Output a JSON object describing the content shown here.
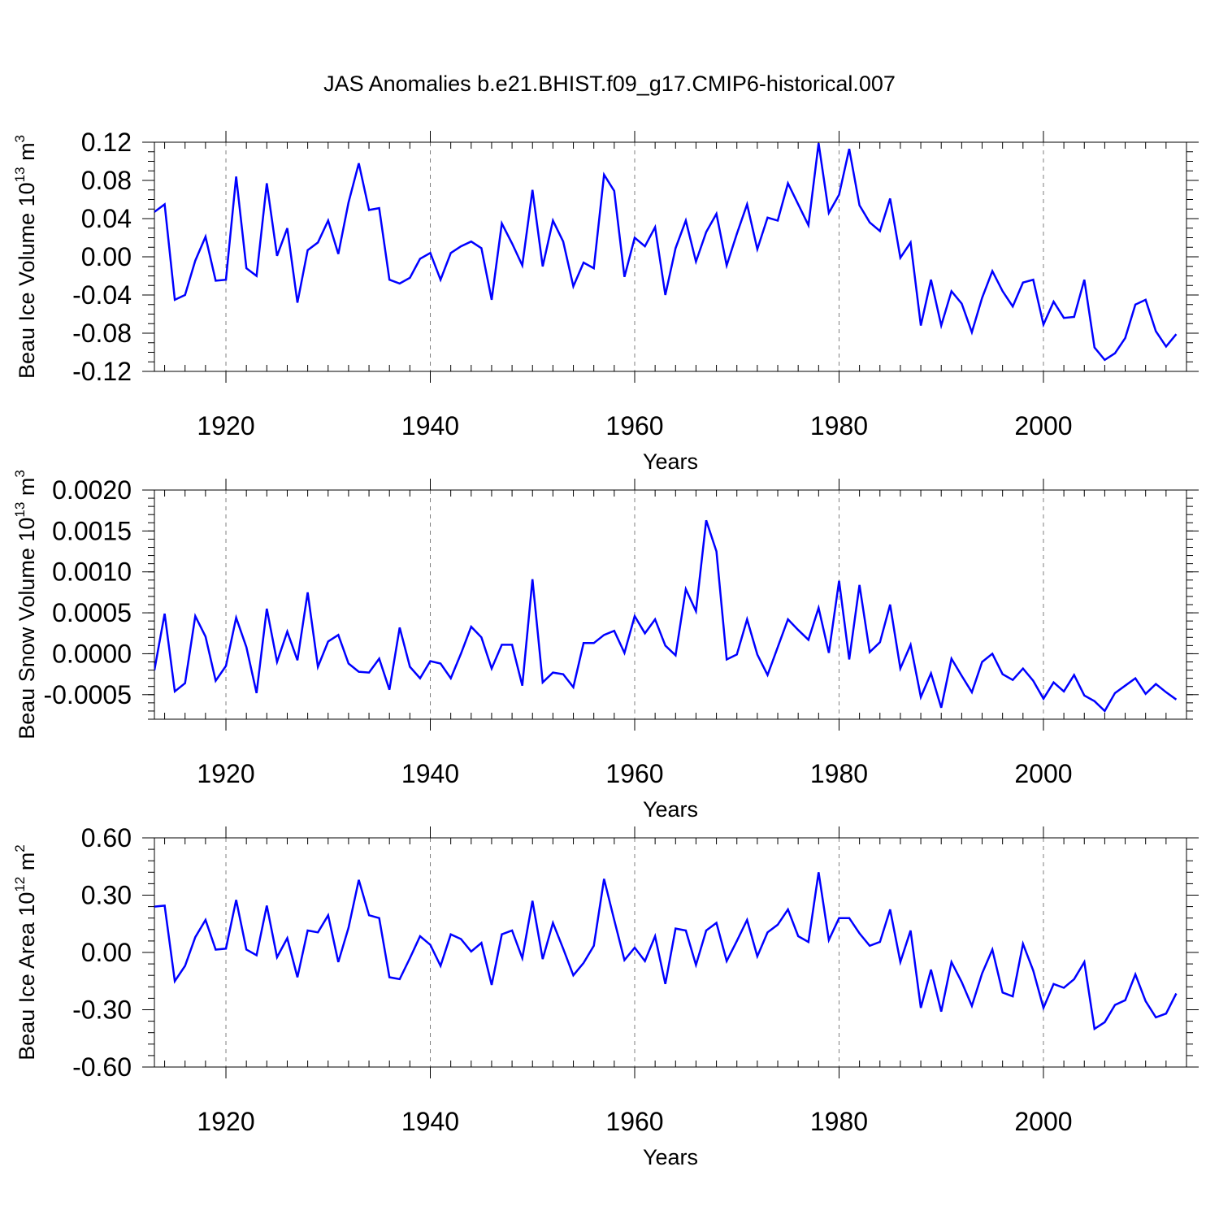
{
  "title": "JAS Anomalies b.e21.BHIST.f09_g17.CMIP6-historical.007",
  "colors": {
    "line": "#0000ff",
    "axis": "#000000",
    "grid": "#808080"
  },
  "chart_data": [
    {
      "type": "line",
      "xlabel": "Years",
      "ylabel_parts": [
        "Beau Ice Volume 10",
        "13",
        " m",
        "3"
      ],
      "xlim": [
        1913,
        2014
      ],
      "ylim": [
        -0.12,
        0.12
      ],
      "x_ticks": [
        1920,
        1940,
        1960,
        1980,
        2000
      ],
      "x_tick_labels": [
        "1920",
        "1940",
        "1960",
        "1980",
        "2000"
      ],
      "y_ticks": [
        -0.12,
        -0.08,
        -0.04,
        0.0,
        0.04,
        0.08,
        0.12
      ],
      "y_tick_labels": [
        "-0.12",
        "-0.08",
        "-0.04",
        "0.00",
        "0.04",
        "0.08",
        "0.12"
      ],
      "y_minor_step": 0.01,
      "grid_x": true,
      "x_start": 1913,
      "values": [
        0.047,
        0.055,
        -0.045,
        -0.04,
        -0.004,
        0.021,
        -0.025,
        -0.024,
        0.084,
        -0.012,
        -0.02,
        0.077,
        0.001,
        0.03,
        -0.048,
        0.007,
        0.015,
        0.038,
        0.003,
        0.057,
        0.098,
        0.049,
        0.051,
        -0.024,
        -0.028,
        -0.022,
        -0.002,
        0.004,
        -0.024,
        0.004,
        0.011,
        0.016,
        0.009,
        -0.045,
        0.035,
        0.014,
        -0.009,
        0.07,
        -0.01,
        0.038,
        0.016,
        -0.031,
        -0.006,
        -0.012,
        0.086,
        0.069,
        -0.021,
        0.02,
        0.011,
        0.031,
        -0.04,
        0.009,
        0.038,
        -0.005,
        0.026,
        0.045,
        -0.009,
        0.024,
        0.055,
        0.008,
        0.041,
        0.038,
        0.077,
        0.055,
        0.033,
        0.119,
        0.046,
        0.065,
        0.113,
        0.054,
        0.036,
        0.027,
        0.061,
        -0.001,
        0.015,
        -0.072,
        -0.024,
        -0.072,
        -0.036,
        -0.049,
        -0.079,
        -0.043,
        -0.015,
        -0.036,
        -0.052,
        -0.027,
        -0.024,
        -0.071,
        -0.047,
        -0.064,
        -0.063,
        -0.024,
        -0.095,
        -0.108,
        -0.101,
        -0.085,
        -0.05,
        -0.045,
        -0.078,
        -0.094,
        -0.081
      ]
    },
    {
      "type": "line",
      "xlabel": "Years",
      "ylabel_parts": [
        "Beau Snow Volume 10",
        "13",
        " m",
        "3"
      ],
      "xlim": [
        1913,
        2014
      ],
      "ylim": [
        -0.0008,
        0.002
      ],
      "x_ticks": [
        1920,
        1940,
        1960,
        1980,
        2000
      ],
      "x_tick_labels": [
        "1920",
        "1940",
        "1960",
        "1980",
        "2000"
      ],
      "y_ticks": [
        -0.0005,
        0.0,
        0.0005,
        0.001,
        0.0015,
        0.002
      ],
      "y_tick_labels": [
        "-0.0005",
        "0.0000",
        "0.0005",
        "0.0010",
        "0.0015",
        "0.0020"
      ],
      "y_minor_step": 0.0001,
      "grid_x": true,
      "x_start": 1913,
      "values": [
        -0.0002,
        0.00049,
        -0.00046,
        -0.00036,
        0.00046,
        0.00021,
        -0.00033,
        -0.00015,
        0.00044,
        8e-05,
        -0.00048,
        0.00055,
        -0.0001,
        0.00027,
        -8e-05,
        0.00075,
        -0.00016,
        0.00015,
        0.00023,
        -0.00012,
        -0.00022,
        -0.00023,
        -6e-05,
        -0.00044,
        0.00032,
        -0.00016,
        -0.0003,
        -9e-05,
        -0.00012,
        -0.0003,
        0.0,
        0.00033,
        0.0002,
        -0.00018,
        0.00011,
        0.00011,
        -0.00039,
        0.00091,
        -0.00035,
        -0.00023,
        -0.00025,
        -0.00041,
        0.00013,
        0.00013,
        0.00023,
        0.00028,
        1e-05,
        0.00046,
        0.00025,
        0.00042,
        0.0001,
        -2e-05,
        0.00079,
        0.00052,
        0.00163,
        0.00125,
        -7e-05,
        -1e-05,
        0.00042,
        -1e-05,
        -0.00026,
        8e-05,
        0.00042,
        0.00029,
        0.00017,
        0.00056,
        1e-05,
        0.00089,
        -7e-05,
        0.00084,
        2e-05,
        0.00014,
        0.0006,
        -0.00018,
        0.00011,
        -0.00053,
        -0.00024,
        -0.00066,
        -6e-05,
        -0.00027,
        -0.00047,
        -0.0001,
        0.0,
        -0.00025,
        -0.00032,
        -0.00018,
        -0.00033,
        -0.00055,
        -0.00035,
        -0.00046,
        -0.00026,
        -0.00051,
        -0.00058,
        -0.0007,
        -0.00048,
        -0.00039,
        -0.0003,
        -0.00049,
        -0.00037,
        -0.00047,
        -0.00056
      ]
    },
    {
      "type": "line",
      "xlabel": "Years",
      "ylabel_parts": [
        "Beau Ice Area 10",
        "12",
        " m",
        "2"
      ],
      "xlim": [
        1913,
        2014
      ],
      "ylim": [
        -0.6,
        0.6
      ],
      "x_ticks": [
        1920,
        1940,
        1960,
        1980,
        2000
      ],
      "x_tick_labels": [
        "1920",
        "1940",
        "1960",
        "1980",
        "2000"
      ],
      "y_ticks": [
        -0.6,
        -0.3,
        0.0,
        0.3,
        0.6
      ],
      "y_tick_labels": [
        "-0.60",
        "-0.30",
        "0.00",
        "0.30",
        "0.60"
      ],
      "y_minor_step": 0.06,
      "grid_x": true,
      "x_start": 1913,
      "values": [
        0.24,
        0.245,
        -0.15,
        -0.07,
        0.08,
        0.17,
        0.015,
        0.02,
        0.275,
        0.015,
        -0.015,
        0.245,
        -0.025,
        0.075,
        -0.13,
        0.115,
        0.105,
        0.195,
        -0.05,
        0.13,
        0.38,
        0.195,
        0.18,
        -0.13,
        -0.14,
        -0.03,
        0.085,
        0.04,
        -0.07,
        0.095,
        0.07,
        0.005,
        0.05,
        -0.17,
        0.095,
        0.115,
        -0.03,
        0.27,
        -0.035,
        0.155,
        0.02,
        -0.12,
        -0.055,
        0.035,
        0.385,
        0.17,
        -0.04,
        0.025,
        -0.045,
        0.085,
        -0.165,
        0.125,
        0.115,
        -0.065,
        0.115,
        0.155,
        -0.045,
        0.06,
        0.17,
        -0.02,
        0.105,
        0.145,
        0.225,
        0.085,
        0.055,
        0.42,
        0.065,
        0.18,
        0.18,
        0.1,
        0.035,
        0.055,
        0.225,
        -0.05,
        0.115,
        -0.29,
        -0.09,
        -0.31,
        -0.05,
        -0.155,
        -0.28,
        -0.11,
        0.015,
        -0.21,
        -0.23,
        0.045,
        -0.095,
        -0.29,
        -0.165,
        -0.185,
        -0.14,
        -0.05,
        -0.4,
        -0.365,
        -0.275,
        -0.25,
        -0.115,
        -0.255,
        -0.34,
        -0.32,
        -0.215
      ]
    }
  ]
}
